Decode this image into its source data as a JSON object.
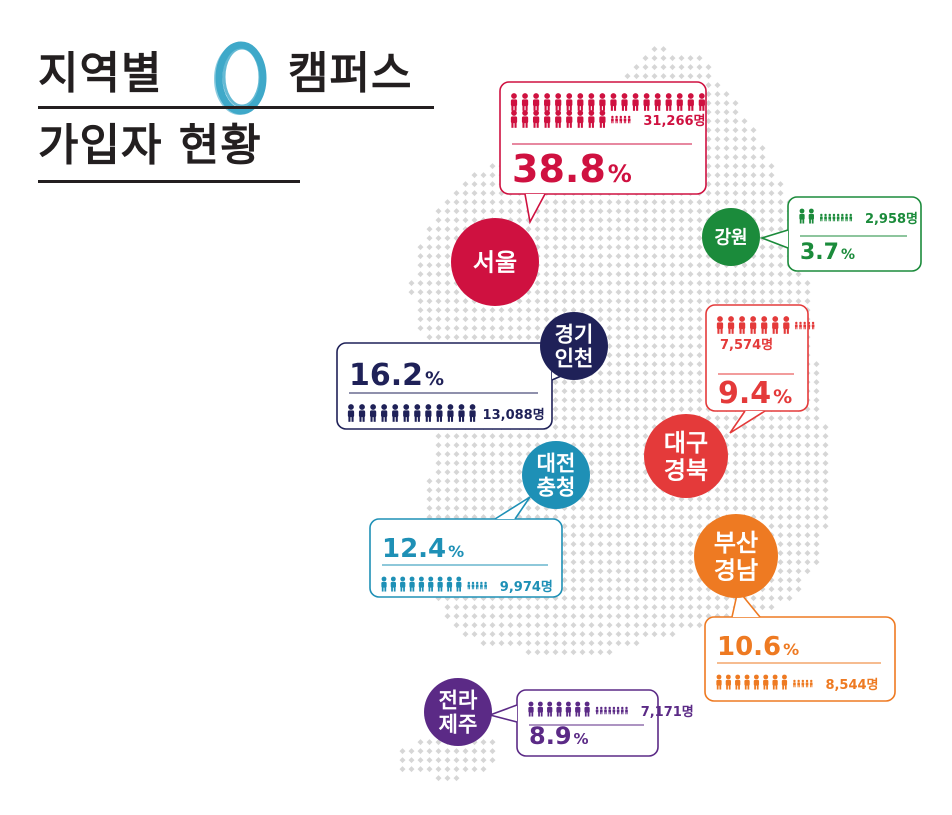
{
  "title": {
    "line1_before": "지역별",
    "line1_after": "캠퍼스",
    "line2": "가입자 현황",
    "logo_color": "#3fa9c9"
  },
  "chart_data": {
    "type": "map",
    "unit": "명",
    "regions": [
      {
        "id": "seoul",
        "label": [
          "서울"
        ],
        "count": "31,266명",
        "value": 31266,
        "percent_num": "38.8",
        "percent_sign": "%",
        "color": "#cf1140"
      },
      {
        "id": "gangwon",
        "label": [
          "강원"
        ],
        "count": "2,958명",
        "value": 2958,
        "percent_num": "3.7",
        "percent_sign": "%",
        "color": "#1b8b3b"
      },
      {
        "id": "gyeonggi",
        "label": [
          "경기",
          "인천"
        ],
        "count": "13,088명",
        "value": 13088,
        "percent_num": "16.2",
        "percent_sign": "%",
        "color": "#1f2158"
      },
      {
        "id": "daegu",
        "label": [
          "대구",
          "경북"
        ],
        "count": "7,574명",
        "value": 7574,
        "percent_num": "9.4",
        "percent_sign": "%",
        "color": "#e43a3a"
      },
      {
        "id": "daejeon",
        "label": [
          "대전",
          "충청"
        ],
        "count": "9,974명",
        "value": 9974,
        "percent_num": "12.4",
        "percent_sign": "%",
        "color": "#1e90b6"
      },
      {
        "id": "busan",
        "label": [
          "부산",
          "경남"
        ],
        "count": "8,544명",
        "value": 8544,
        "percent_num": "10.6",
        "percent_sign": "%",
        "color": "#ee7a22"
      },
      {
        "id": "jeolla",
        "label": [
          "전라",
          "제주"
        ],
        "count": "7,171명",
        "value": 7171,
        "percent_num": "8.9",
        "percent_sign": "%",
        "color": "#5b2a86"
      }
    ]
  }
}
